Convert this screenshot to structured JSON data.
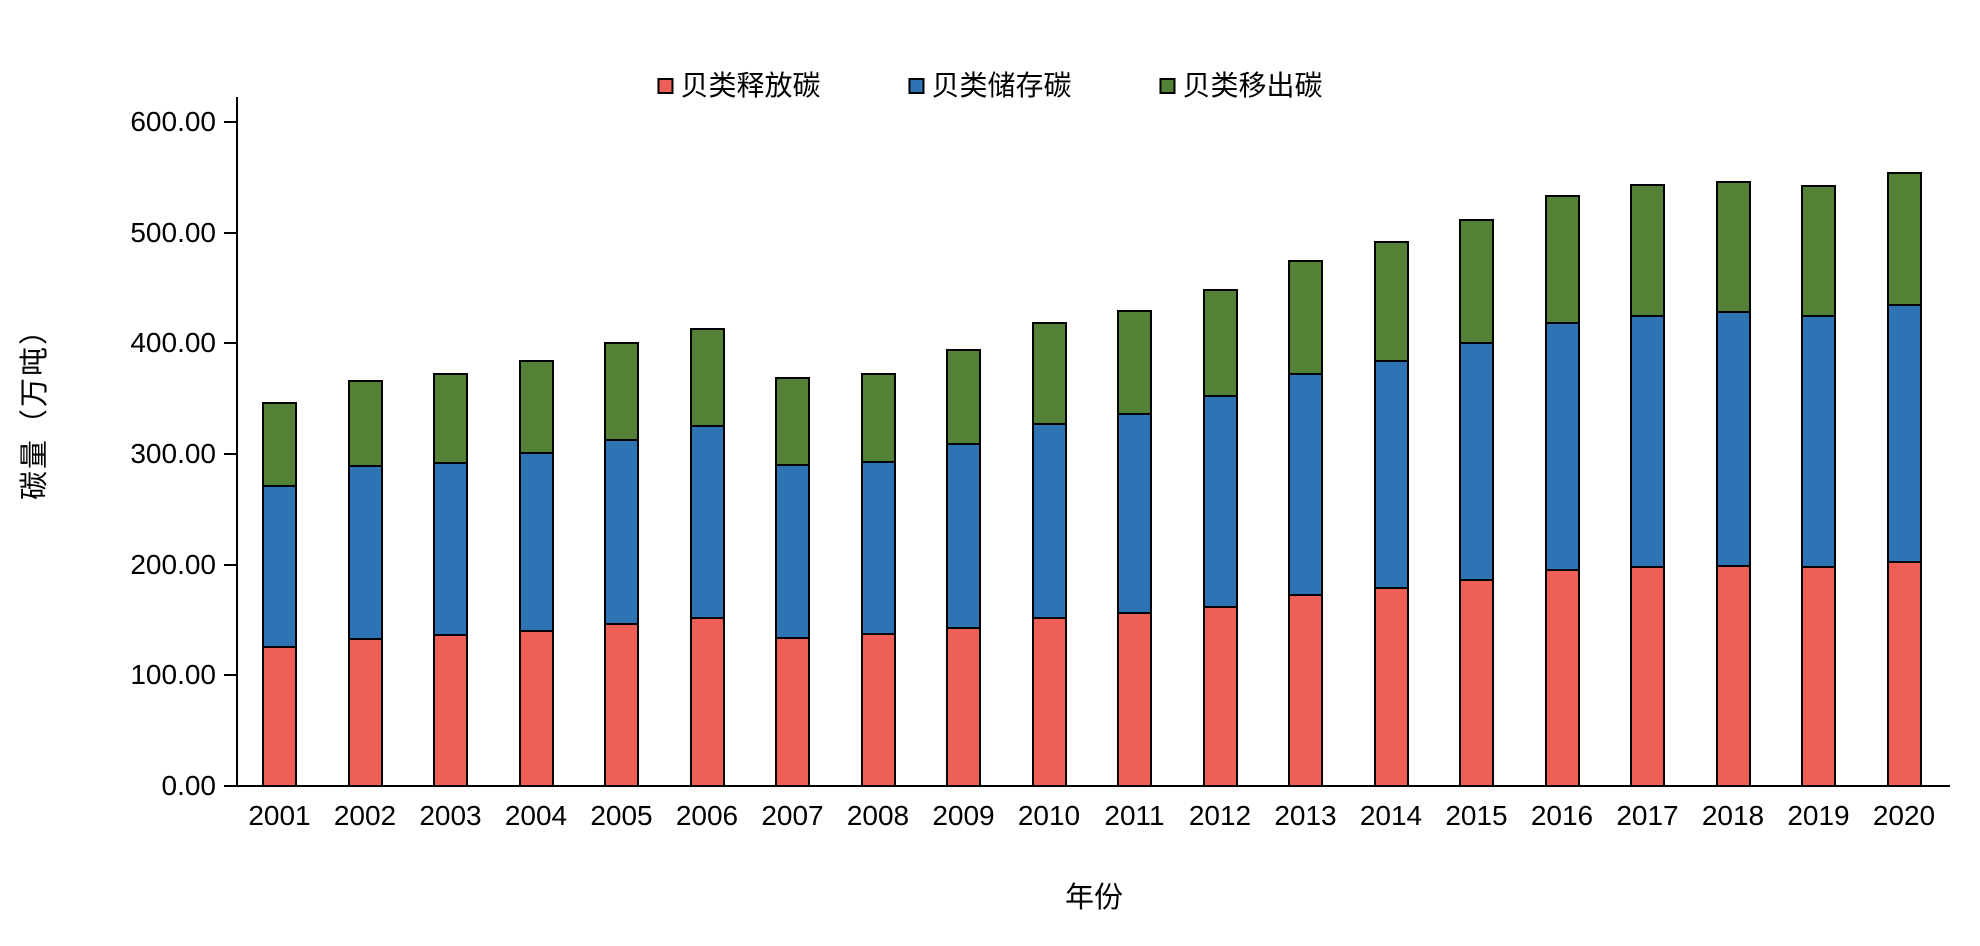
{
  "chart_data": {
    "type": "bar",
    "stacked": true,
    "title": "",
    "xlabel": "年份",
    "ylabel": "碳量（万吨）",
    "ylim": [
      0,
      600
    ],
    "y_tick_step": 100,
    "y_ticks": [
      "0.00",
      "100.00",
      "200.00",
      "300.00",
      "400.00",
      "500.00",
      "600.00"
    ],
    "grid": false,
    "legend_position": "top-center",
    "bar_outline_color": "#000000",
    "axis_color": "#000000",
    "categories": [
      "2001",
      "2002",
      "2003",
      "2004",
      "2005",
      "2006",
      "2007",
      "2008",
      "2009",
      "2010",
      "2011",
      "2012",
      "2013",
      "2014",
      "2015",
      "2016",
      "2017",
      "2018",
      "2019",
      "2020"
    ],
    "series": [
      {
        "name": "贝类释放碳",
        "color": "#EE6056",
        "values": [
          126,
          133,
          136,
          140,
          146,
          152,
          134,
          137,
          143,
          152,
          156,
          162,
          173,
          179,
          186,
          195,
          198,
          199,
          198,
          202
        ]
      },
      {
        "name": "贝类储存碳",
        "color": "#2E74B5",
        "values": [
          145,
          156,
          156,
          161,
          167,
          173,
          156,
          156,
          166,
          175,
          180,
          190,
          199,
          205,
          214,
          223,
          227,
          229,
          227,
          233
        ]
      },
      {
        "name": "贝类移出碳",
        "color": "#538135",
        "values": [
          75,
          77,
          80,
          83,
          87,
          88,
          79,
          79,
          85,
          91,
          93,
          96,
          102,
          108,
          111,
          115,
          118,
          118,
          117,
          119
        ]
      }
    ],
    "totals": [
      346,
      366,
      372,
      384,
      400,
      413,
      369,
      372,
      394,
      418,
      429,
      448,
      474,
      492,
      511,
      533,
      543,
      546,
      542,
      554
    ]
  }
}
